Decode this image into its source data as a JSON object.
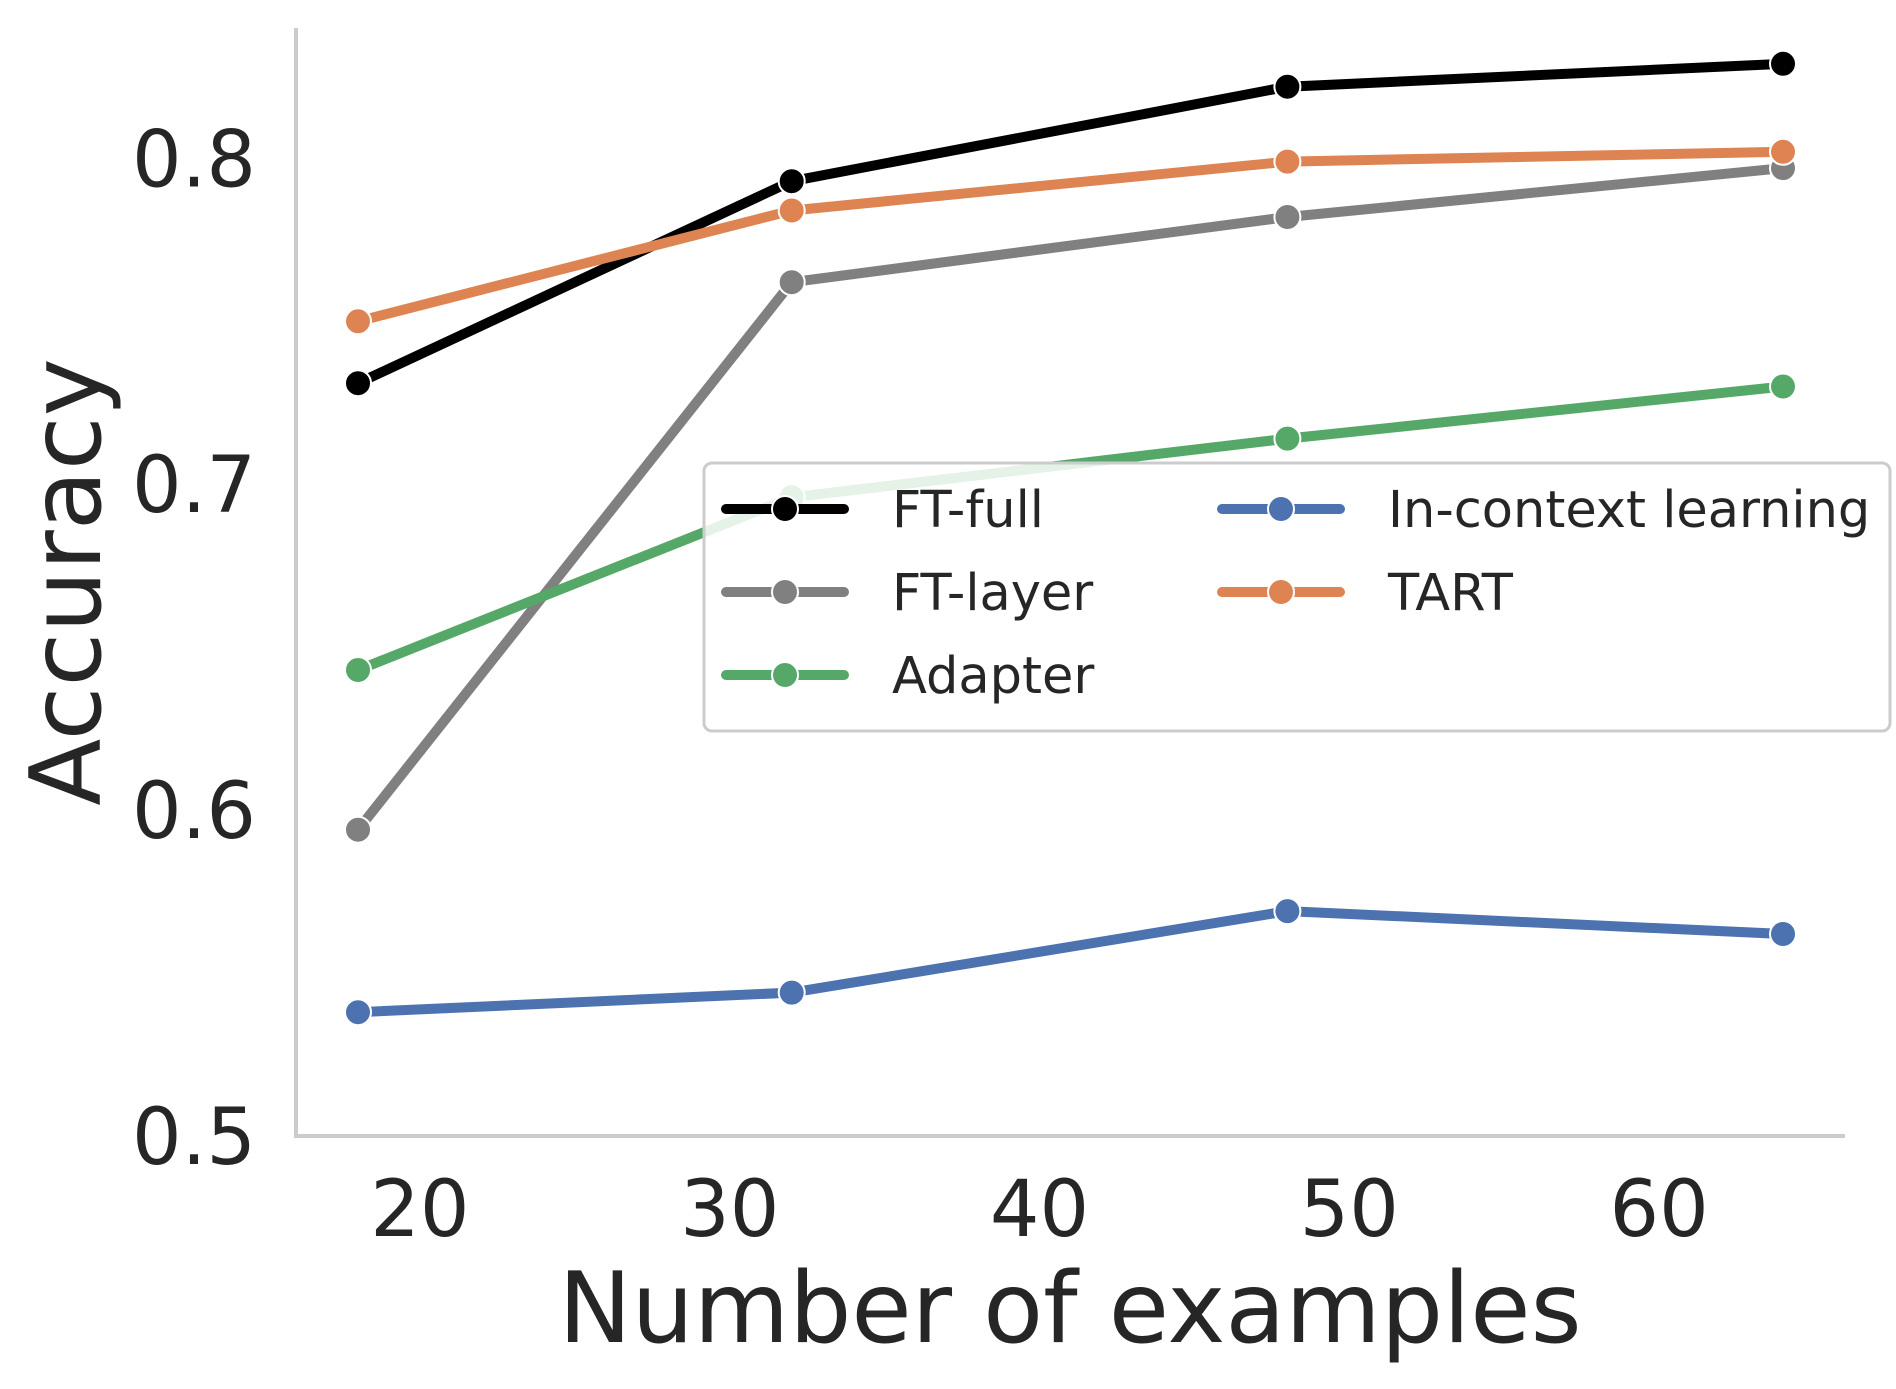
{
  "chart_data": {
    "type": "line",
    "title": "",
    "xlabel": "Number of examples",
    "ylabel": "Accuracy",
    "xlim": [
      16,
      66
    ],
    "ylim": [
      0.5,
      0.84
    ],
    "x": [
      18,
      32,
      48,
      64
    ],
    "xticks": [
      20,
      30,
      40,
      50,
      60
    ],
    "xtick_labels": [
      "20",
      "30",
      "40",
      "50",
      "60"
    ],
    "yticks": [
      0.5,
      0.6,
      0.7,
      0.8
    ],
    "ytick_labels": [
      "0.5",
      "0.6",
      "0.7",
      "0.8"
    ],
    "grid": false,
    "legend_position": "center-right",
    "series": [
      {
        "name": "FT-full",
        "color": "#000000",
        "values": [
          0.731,
          0.793,
          0.822,
          0.829
        ]
      },
      {
        "name": "FT-layer",
        "color": "#808080",
        "values": [
          0.594,
          0.762,
          0.782,
          0.797
        ]
      },
      {
        "name": "Adapter",
        "color": "#55a868",
        "values": [
          0.643,
          0.696,
          0.714,
          0.73
        ]
      },
      {
        "name": "In-context learning",
        "color": "#4c72b0",
        "values": [
          0.538,
          0.544,
          0.569,
          0.562
        ]
      },
      {
        "name": "TART",
        "color": "#dd8452",
        "values": [
          0.75,
          0.784,
          0.799,
          0.802
        ]
      }
    ]
  }
}
